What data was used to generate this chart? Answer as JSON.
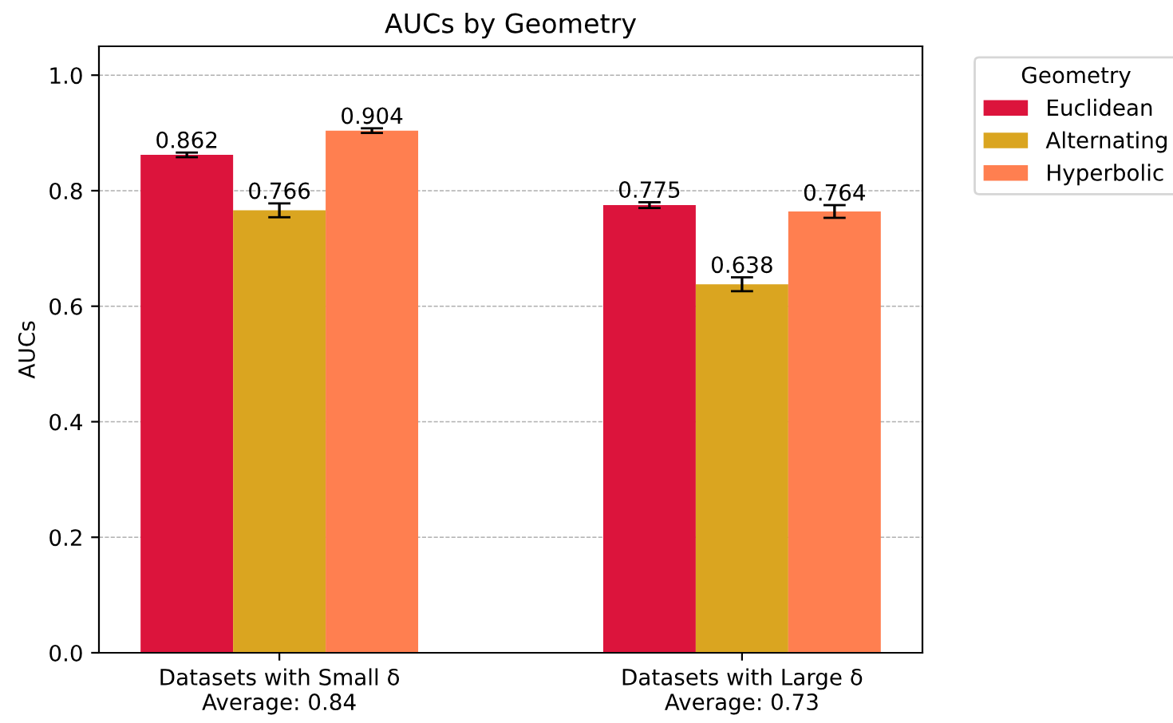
{
  "chart_data": {
    "type": "bar",
    "title": "AUCs by Geometry",
    "ylabel": "AUCs",
    "legend_title": "Geometry",
    "categories": [
      "Datasets with Small δ\nAverage: 0.84",
      "Datasets with Large δ\nAverage: 0.73"
    ],
    "series": [
      {
        "name": "Euclidean",
        "color": "#dc143c",
        "values": [
          0.862,
          0.775
        ],
        "errors": [
          0.004,
          0.005
        ]
      },
      {
        "name": "Alternating",
        "color": "#daa520",
        "values": [
          0.766,
          0.638
        ],
        "errors": [
          0.012,
          0.012
        ]
      },
      {
        "name": "Hyperbolic",
        "color": "#ff7f50",
        "values": [
          0.904,
          0.764
        ],
        "errors": [
          0.004,
          0.011
        ]
      }
    ],
    "ylim": [
      0,
      1.05
    ],
    "yticks": [
      {
        "value": 0,
        "label": "0.0"
      },
      0.2,
      0.4,
      0.6,
      0.8,
      {
        "value": 1,
        "label": "1.0"
      }
    ],
    "grid": "y",
    "legend": "top right",
    "data_labels": true
  }
}
